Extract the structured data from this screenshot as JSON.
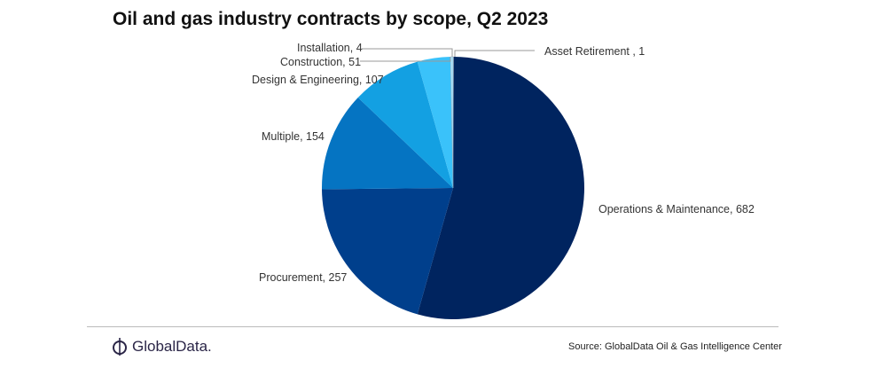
{
  "chart_data": {
    "type": "pie",
    "title": "Oil and gas industry contracts by scope, Q2 2023",
    "start": "top",
    "direction": "clockwise",
    "slices": [
      {
        "label": "Asset Retirement ",
        "value": 1,
        "color": "#e8f4fc"
      },
      {
        "label": "Operations & Maintenance",
        "value": 682,
        "color": "#00245f"
      },
      {
        "label": "Procurement",
        "value": 257,
        "color": "#003f8c"
      },
      {
        "label": "Multiple",
        "value": 154,
        "color": "#0574c2"
      },
      {
        "label": "Design & Engineering",
        "value": 107,
        "color": "#13a0e2"
      },
      {
        "label": "Construction",
        "value": 51,
        "color": "#3ac2fa"
      },
      {
        "label": "Installation",
        "value": 4,
        "color": "#a9e2fb"
      }
    ]
  },
  "footer": {
    "brand": "GlobalData.",
    "source": "Source: GlobalData Oil & Gas Intelligence Center"
  }
}
